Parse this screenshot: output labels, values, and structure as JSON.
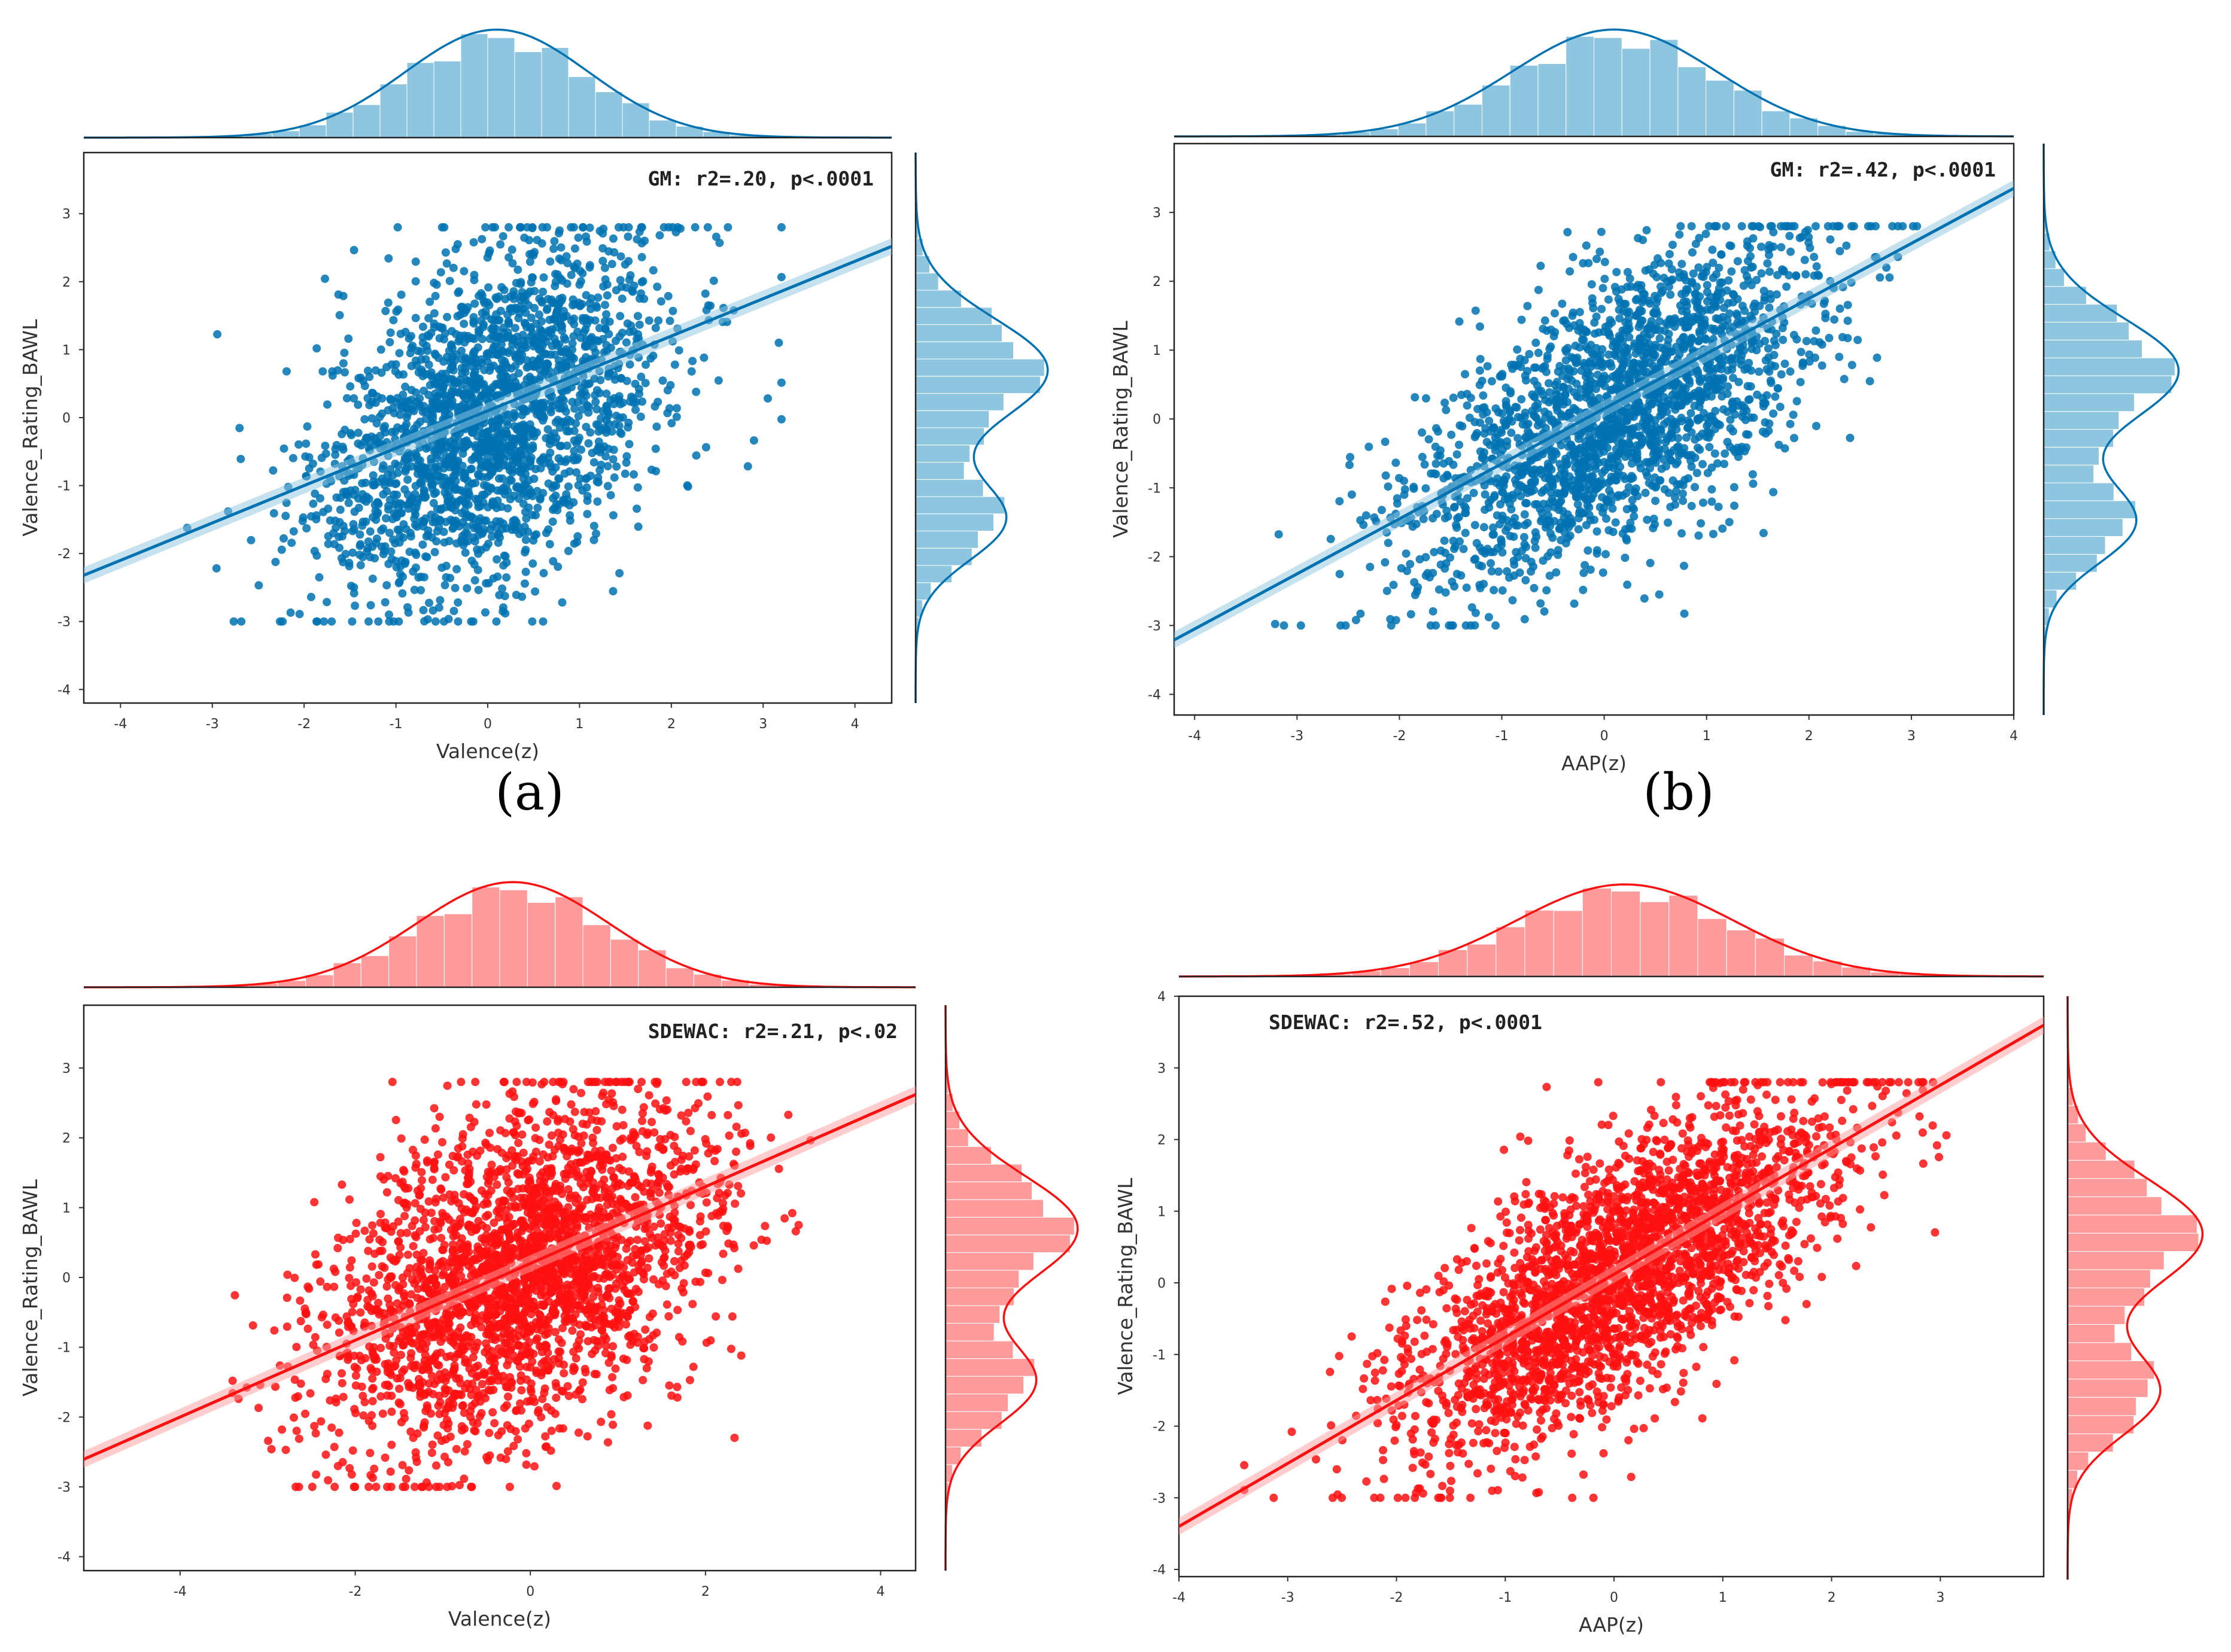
{
  "colors": {
    "blue": "#0072b2",
    "blue_light": "#8ec5df",
    "red": "#ff1010",
    "red_light": "#ff9b9b"
  },
  "panel_labels": [
    "(a)",
    "(b)"
  ],
  "chart_data": [
    {
      "id": "a",
      "type": "scatter",
      "series_name": "GM",
      "color": "blue",
      "annotation": "GM: r2=.20, p<.0001",
      "xlabel": "Valence(z)",
      "ylabel": "Valence_Rating_BAWL",
      "xlim": [
        -4.4,
        4.4
      ],
      "ylim": [
        -4.2,
        3.9
      ],
      "xticks": [
        "-4",
        "-3",
        "-2",
        "-1",
        "0",
        "1",
        "2",
        "3",
        "4"
      ],
      "yticks": [
        "-4",
        "-3",
        "-2",
        "-1",
        "0",
        "1",
        "2",
        "3"
      ],
      "regression": {
        "slope": 0.55,
        "intercept": 0.1
      },
      "n_points": 2200,
      "point_sample": {
        "x_mean": 0.05,
        "x_sd": 0.95,
        "y_mean": 0.0,
        "y_sd": 1.3,
        "r": 0.45
      },
      "x_marginal": {
        "mean": 0.1,
        "sd": 1.0
      },
      "y_marginal": {
        "peaks": [
          {
            "mean": 0.7,
            "sd": 0.75,
            "weight": 0.65
          },
          {
            "mean": -1.5,
            "sd": 0.6,
            "weight": 0.35
          }
        ]
      }
    },
    {
      "id": "b",
      "type": "scatter",
      "series_name": "GM",
      "color": "blue",
      "annotation": "GM: r2=.42, p<.0001",
      "xlabel": "AAP(z)",
      "ylabel": "Valence_Rating_BAWL",
      "xlim": [
        -4.2,
        4.0
      ],
      "ylim": [
        -4.3,
        4.0
      ],
      "xticks": [
        "-4",
        "-3",
        "-2",
        "-1",
        "0",
        "1",
        "2",
        "3",
        "4"
      ],
      "yticks": [
        "-4",
        "-3",
        "-2",
        "-1",
        "0",
        "1",
        "2",
        "3"
      ],
      "regression": {
        "slope": 0.8,
        "intercept": 0.15
      },
      "n_points": 2200,
      "point_sample": {
        "x_mean": 0.1,
        "x_sd": 1.0,
        "y_mean": 0.1,
        "y_sd": 1.25,
        "r": 0.65
      },
      "x_marginal": {
        "mean": 0.1,
        "sd": 1.0
      },
      "y_marginal": {
        "peaks": [
          {
            "mean": 0.7,
            "sd": 0.75,
            "weight": 0.65
          },
          {
            "mean": -1.5,
            "sd": 0.6,
            "weight": 0.35
          }
        ]
      }
    },
    {
      "id": "c",
      "type": "scatter",
      "series_name": "SDEWAC",
      "color": "red",
      "annotation": "SDEWAC: r2=.21, p<.02",
      "xlabel": "Valence(z)",
      "ylabel": "Valence_Rating_BAWL",
      "xlim": [
        -5.1,
        4.4
      ],
      "ylim": [
        -4.2,
        3.9
      ],
      "xticks": [
        "-4",
        "-2",
        "0",
        "2",
        "4"
      ],
      "yticks": [
        "-4",
        "-3",
        "-2",
        "-1",
        "0",
        "1",
        "2",
        "3"
      ],
      "regression": {
        "slope": 0.55,
        "intercept": 0.2
      },
      "n_points": 2600,
      "point_sample": {
        "x_mean": -0.1,
        "x_sd": 1.1,
        "y_mean": 0.05,
        "y_sd": 1.3,
        "r": 0.45
      },
      "x_marginal": {
        "mean": -0.2,
        "sd": 1.1
      },
      "y_marginal": {
        "peaks": [
          {
            "mean": 0.7,
            "sd": 0.75,
            "weight": 0.65
          },
          {
            "mean": -1.5,
            "sd": 0.6,
            "weight": 0.35
          }
        ]
      }
    },
    {
      "id": "d",
      "type": "scatter",
      "series_name": "SDEWAC",
      "color": "red",
      "annotation": "SDEWAC: r2=.52, p<.0001",
      "xlabel": "AAP(z)",
      "ylabel": "Valence_Rating_BAWL",
      "xlim": [
        -4.0,
        3.95
      ],
      "ylim": [
        -4.1,
        4.0
      ],
      "xticks": [
        "-4",
        "-3",
        "-2",
        "-1",
        "0",
        "1",
        "2",
        "3"
      ],
      "yticks": [
        "-4",
        "-3",
        "-2",
        "-1",
        "0",
        "1",
        "2",
        "3",
        "4"
      ],
      "regression": {
        "slope": 0.88,
        "intercept": 0.12
      },
      "n_points": 2600,
      "point_sample": {
        "x_mean": 0.05,
        "x_sd": 1.0,
        "y_mean": 0.1,
        "y_sd": 1.25,
        "r": 0.72
      },
      "x_marginal": {
        "mean": 0.1,
        "sd": 1.0
      },
      "y_marginal": {
        "peaks": [
          {
            "mean": 0.7,
            "sd": 0.75,
            "weight": 0.65
          },
          {
            "mean": -1.5,
            "sd": 0.6,
            "weight": 0.35
          }
        ]
      }
    }
  ]
}
